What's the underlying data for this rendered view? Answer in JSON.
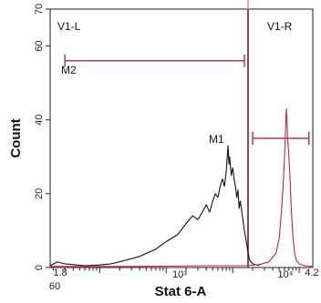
{
  "chart_data": {
    "type": "line",
    "xlabel": "Stat 6-A",
    "ylabel": "Count",
    "ylim": [
      0,
      70
    ],
    "xscale": "log",
    "y_ticks": [
      {
        "value": 0,
        "label": "0"
      },
      {
        "value": 20,
        "label": "20"
      },
      {
        "value": 40,
        "label": "40"
      },
      {
        "value": 60,
        "label": "60"
      },
      {
        "value": 70,
        "label": "70"
      }
    ],
    "x_tick_labels": [
      {
        "label": "60",
        "role": "corner"
      },
      {
        "label": "1.8",
        "role": "min"
      },
      {
        "label": "10³",
        "role": "1e3"
      },
      {
        "label": "10⁴",
        "role": "1e4"
      },
      {
        "label": "4.2",
        "role": "max"
      }
    ],
    "grid": false,
    "gate_lines": [
      {
        "name": "V1-L",
        "x": 1700,
        "color": "#7a1a32"
      },
      {
        "name": "axis-extension",
        "x": 1700,
        "color": "#e6a2b4"
      }
    ],
    "regions": [
      {
        "label": "V1-L",
        "side": "left"
      },
      {
        "label": "V1-R",
        "side": "right"
      }
    ],
    "markers": [
      {
        "label": "M2",
        "x_range": [
          3,
          1500
        ],
        "y": 56,
        "color": "#b03a52"
      },
      {
        "label": "M1",
        "x_range": [
          2000,
          14000
        ],
        "y": 35,
        "color": "#b03a52"
      }
    ],
    "series": [
      {
        "color": "#111111",
        "points": [
          [
            1.8,
            0.5
          ],
          [
            2.3,
            1.5
          ],
          [
            3,
            1
          ],
          [
            4,
            0.8
          ],
          [
            6,
            0.5
          ],
          [
            10,
            0.7
          ],
          [
            15,
            1
          ],
          [
            25,
            2
          ],
          [
            40,
            3
          ],
          [
            70,
            5
          ],
          [
            100,
            7
          ],
          [
            150,
            9
          ],
          [
            200,
            12
          ],
          [
            250,
            14
          ],
          [
            300,
            13
          ],
          [
            350,
            15
          ],
          [
            400,
            17
          ],
          [
            450,
            15
          ],
          [
            500,
            18
          ],
          [
            550,
            20
          ],
          [
            600,
            19
          ],
          [
            650,
            22
          ],
          [
            700,
            24
          ],
          [
            750,
            22
          ],
          [
            800,
            26
          ],
          [
            850,
            33
          ],
          [
            880,
            28
          ],
          [
            900,
            30
          ],
          [
            950,
            25
          ],
          [
            1000,
            27
          ],
          [
            1050,
            24
          ],
          [
            1100,
            22
          ],
          [
            1150,
            19
          ],
          [
            1200,
            21
          ],
          [
            1250,
            16
          ],
          [
            1300,
            18
          ],
          [
            1400,
            14
          ],
          [
            1500,
            10
          ],
          [
            1600,
            7
          ],
          [
            1700,
            4
          ],
          [
            1800,
            2
          ],
          [
            2000,
            1
          ],
          [
            2500,
            0.5
          ]
        ]
      },
      {
        "color": "#c0253f",
        "points": [
          [
            1.8,
            0.3
          ],
          [
            30,
            0.3
          ],
          [
            500,
            0.5
          ],
          [
            1500,
            0.5
          ],
          [
            2500,
            0.8
          ],
          [
            3500,
            1.5
          ],
          [
            4500,
            4
          ],
          [
            5000,
            8
          ],
          [
            5400,
            15
          ],
          [
            5800,
            24
          ],
          [
            6100,
            33
          ],
          [
            6300,
            40
          ],
          [
            6400,
            43
          ],
          [
            6500,
            41
          ],
          [
            6700,
            35
          ],
          [
            7000,
            30
          ],
          [
            7300,
            24
          ],
          [
            7600,
            16
          ],
          [
            8000,
            9
          ],
          [
            8500,
            4
          ],
          [
            9000,
            2
          ],
          [
            10000,
            1
          ],
          [
            12000,
            0.5
          ],
          [
            16000,
            0.3
          ]
        ]
      }
    ]
  }
}
